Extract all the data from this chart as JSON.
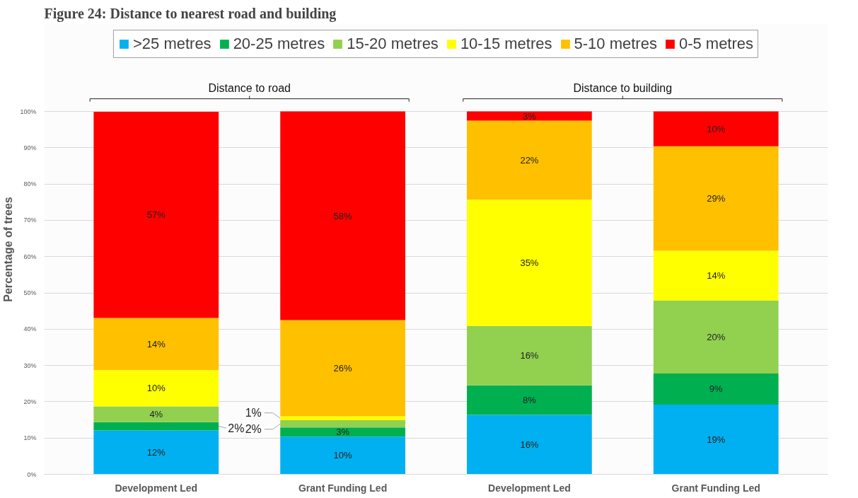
{
  "chart_data": {
    "type": "bar",
    "stacked": true,
    "title": "Figure 24: Distance to nearest road and building",
    "ylabel": "Percentage of trees",
    "categories": [
      "Development Led",
      "Grant Funding Led",
      "Development Led",
      "Grant Funding Led"
    ],
    "annotations": [
      "Distance to road",
      "Distance to building"
    ],
    "series": [
      {
        "name": ">25 metres",
        "color": "#00b0f0",
        "values": [
          12.1,
          10.4,
          16.4,
          19.2
        ],
        "value_labels": [
          "12%",
          "10%",
          "16%",
          "19%"
        ]
      },
      {
        "name": "20-25 metres",
        "color": "#00b050",
        "values": [
          2.3,
          2.5,
          8.1,
          8.6
        ],
        "value_labels": [
          "2%",
          "3%",
          "8%",
          "9%"
        ]
      },
      {
        "name": "15-20 metres",
        "color": "#92d050",
        "values": [
          4.3,
          2.0,
          16.4,
          20.1
        ],
        "value_labels": [
          "4%",
          "2%",
          "16%",
          "20%"
        ]
      },
      {
        "name": "10-15 metres",
        "color": "#ffff00",
        "values": [
          10.0,
          1.1,
          34.8,
          13.7
        ],
        "value_labels": [
          "10%",
          "1%",
          "35%",
          "14%"
        ]
      },
      {
        "name": "5-10 metres",
        "color": "#ffc000",
        "values": [
          14.4,
          26.5,
          21.8,
          28.8
        ],
        "value_labels": [
          "14%",
          "26%",
          "22%",
          "29%"
        ]
      },
      {
        "name": "0-5 metres",
        "color": "#ff0000",
        "values": [
          56.8,
          57.5,
          2.5,
          9.6
        ],
        "value_labels": [
          "57%",
          "58%",
          "3%",
          "10%"
        ]
      }
    ],
    "ylim": [
      0,
      100
    ],
    "yticks": [
      {
        "value": 0,
        "label": "0%"
      },
      {
        "value": 10,
        "label": "10%"
      },
      {
        "value": 20,
        "label": "20%"
      },
      {
        "value": 30,
        "label": "30%"
      },
      {
        "value": 40,
        "label": "40%"
      },
      {
        "value": 50,
        "label": "50%"
      },
      {
        "value": 60,
        "label": "60%"
      },
      {
        "value": 70,
        "label": "70%"
      },
      {
        "value": 80,
        "label": "80%"
      },
      {
        "value": 90,
        "label": "90%"
      },
      {
        "value": 100,
        "label": "100%"
      }
    ],
    "grid": "y",
    "legend": "top"
  }
}
